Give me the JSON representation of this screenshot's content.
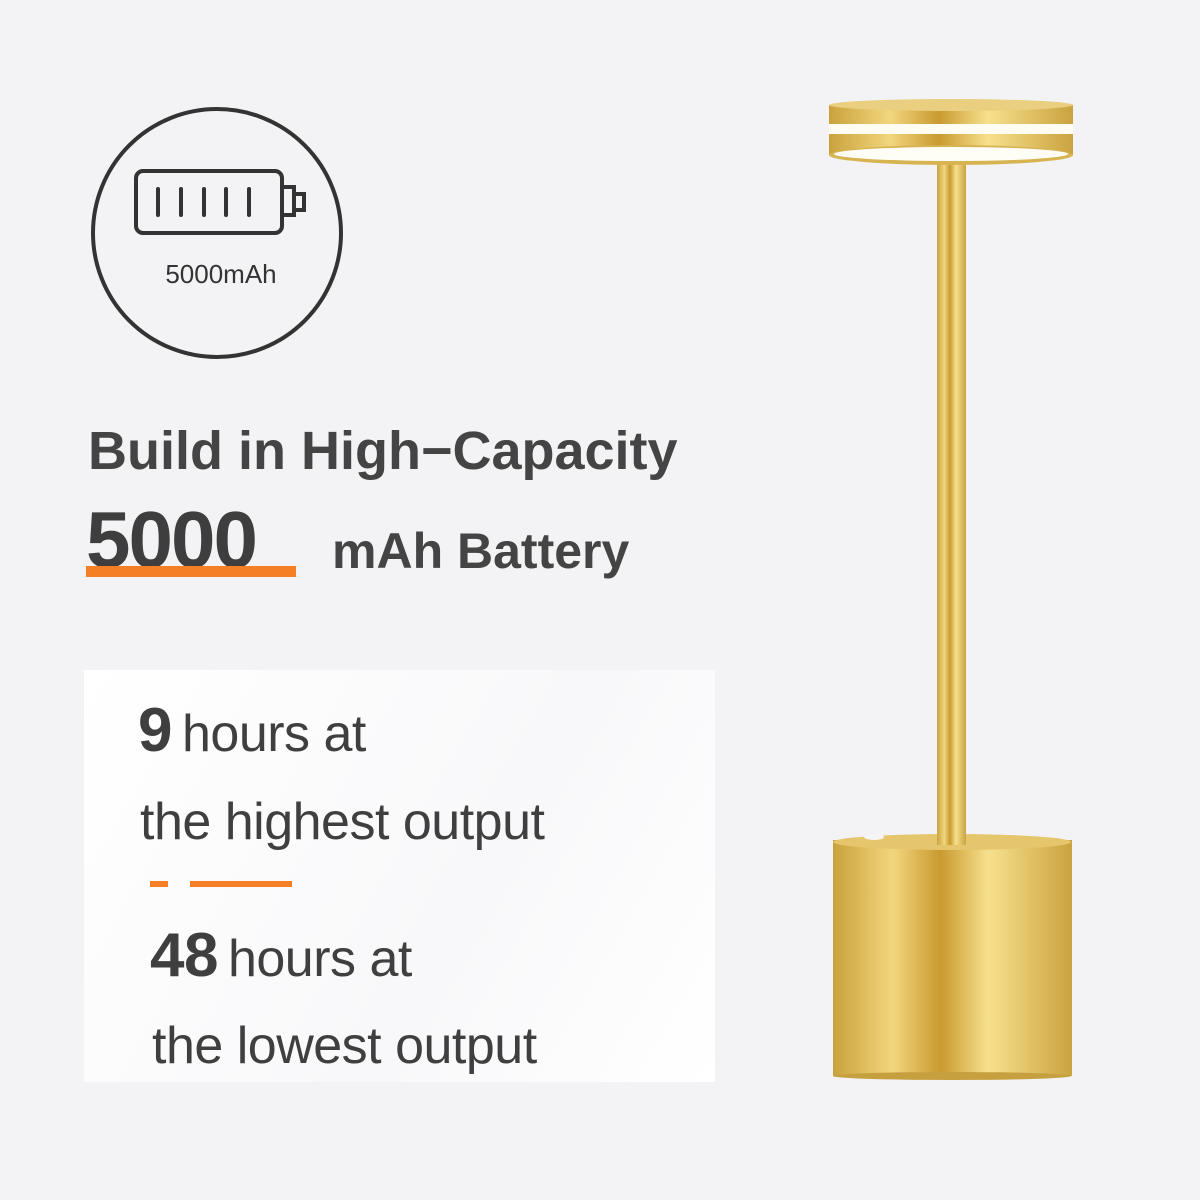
{
  "badge": {
    "icon": "battery-full-icon",
    "label": "5000mAh"
  },
  "headline": {
    "line1": "Build in High−Capacity",
    "capacity": "5000",
    "unit": "mAh Battery"
  },
  "runtime": {
    "high": {
      "hours": "9",
      "text": "hours at",
      "detail": "the highest output"
    },
    "low": {
      "hours": "48",
      "text": "hours at",
      "detail": "the lowest output"
    }
  },
  "colors": {
    "accent": "#f47f24",
    "text": "#414141",
    "background": "#f3f3f5",
    "lamp": "#d9b24a"
  }
}
